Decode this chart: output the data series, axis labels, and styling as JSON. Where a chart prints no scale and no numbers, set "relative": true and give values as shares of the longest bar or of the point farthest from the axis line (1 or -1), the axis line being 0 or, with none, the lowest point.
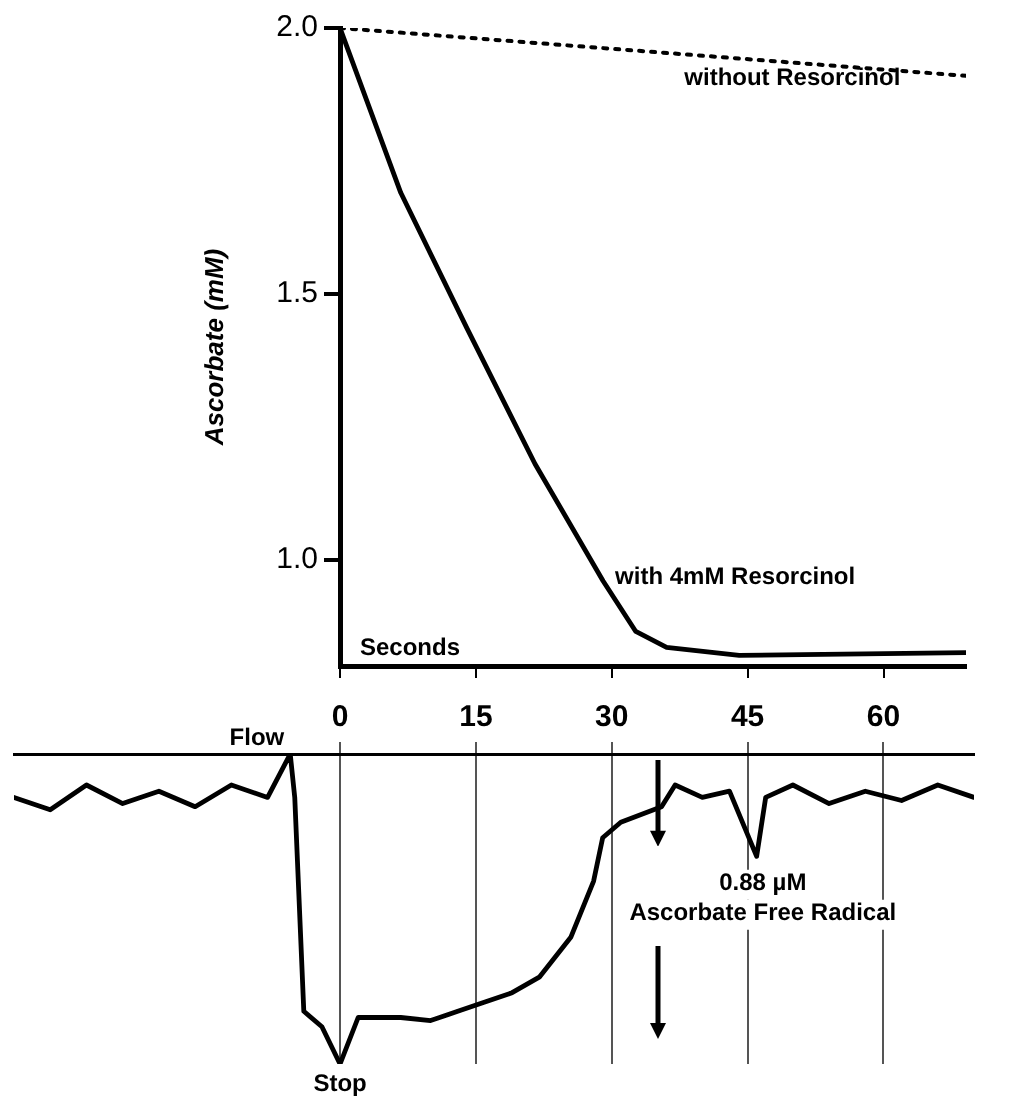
{
  "chart_data": [
    {
      "type": "line",
      "xlabel": "Seconds",
      "ylabel": "Ascorbate (mM)",
      "x": [
        0,
        6.7,
        14,
        21.5,
        29,
        32.6,
        36,
        44,
        69
      ],
      "xlim": [
        0,
        69
      ],
      "ylim": [
        0.8,
        2.0
      ],
      "xticks": [
        0,
        15,
        30,
        45,
        60
      ],
      "yticks": [
        {
          "value": 2.0,
          "label": "2.0"
        },
        {
          "value": 1.5,
          "label": "1.5"
        },
        {
          "value": 1.0,
          "label": "1.0"
        }
      ],
      "tick_labels": "y",
      "grid": false,
      "legend": false,
      "marker": "none",
      "series": [
        {
          "name": "without Resorcinol",
          "color": "#000000",
          "line_style": "dotted",
          "x": [
            0,
            69
          ],
          "values": [
            2.0,
            1.91
          ]
        },
        {
          "name": "with 4mM Resorcinol",
          "color": "#000000",
          "line_style": "solid",
          "values": [
            2.0,
            1.69,
            1.435,
            1.18,
            0.96,
            0.865,
            0.835,
            0.82,
            0.825
          ]
        }
      ]
    },
    {
      "type": "line",
      "relative": true,
      "x": [
        -36,
        -32,
        -28,
        -24,
        -20,
        -16,
        -12,
        -8,
        -5.5,
        -5,
        -4,
        -2,
        0,
        2,
        6.7,
        10,
        13,
        16,
        19,
        22,
        25.5,
        28,
        29,
        31,
        35.5,
        37,
        40,
        43,
        46,
        47,
        50,
        54,
        58,
        62,
        66,
        70
      ],
      "xlim": [
        -36,
        70
      ],
      "xticks": [
        0,
        15,
        30,
        45,
        60
      ],
      "tick_labels": "x",
      "grid": "x",
      "legend": false,
      "marker": "none",
      "series": [
        {
          "color": "#000000",
          "values": [
            0.86,
            0.82,
            0.9,
            0.84,
            0.88,
            0.83,
            0.9,
            0.86,
            1.0,
            0.86,
            0.17,
            0.12,
            0,
            0.15,
            0.15,
            0.14,
            0.17,
            0.2,
            0.23,
            0.28,
            0.41,
            0.59,
            0.73,
            0.78,
            0.83,
            0.9,
            0.86,
            0.88,
            0.67,
            0.86,
            0.9,
            0.84,
            0.88,
            0.85,
            0.9,
            0.86
          ]
        }
      ],
      "annotations": [
        {
          "text": "Flow",
          "x": -5.5,
          "y": 1.0
        },
        {
          "text": "Stop",
          "x": 0,
          "y": 0
        },
        "0.88 µM Ascorbate Free Radical"
      ]
    }
  ]
}
